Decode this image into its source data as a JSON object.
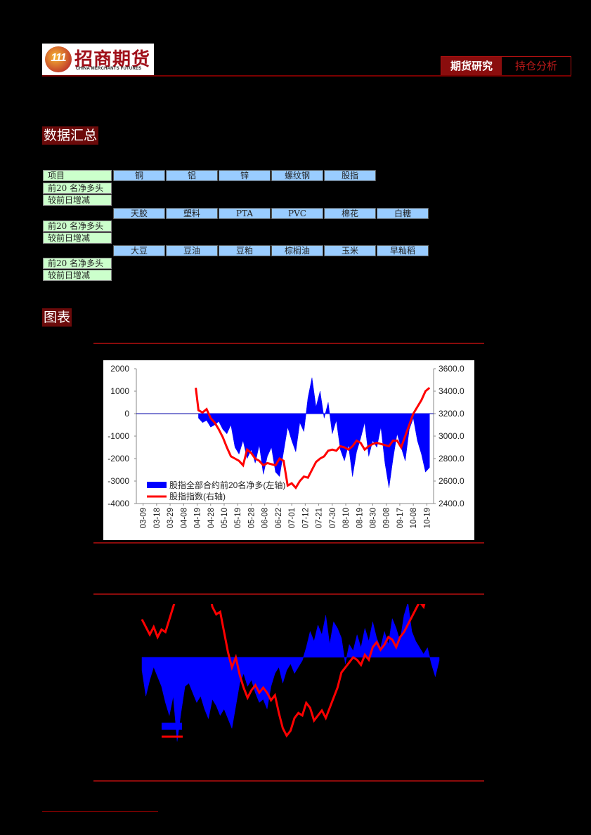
{
  "header": {
    "logo_cn": "招商期货",
    "logo_en": "CHINA MERCHANTS FUTURES",
    "tag_primary": "期货研究",
    "tag_secondary": "持仓分析"
  },
  "sections": {
    "summary_title": "数据汇总",
    "charts_title": "图表"
  },
  "table": {
    "row_label_item": "项目",
    "row_label_net": "前20 名净多头",
    "row_label_change": "较前日增减",
    "groups": [
      {
        "headers": [
          "铜",
          "铝",
          "锌",
          "螺纹钢",
          "股指"
        ]
      },
      {
        "headers": [
          "天胶",
          "塑料",
          "PTA",
          "PVC",
          "棉花",
          "白糖"
        ]
      },
      {
        "headers": [
          "大豆",
          "豆油",
          "豆粕",
          "棕榈油",
          "玉米",
          "早籼稻"
        ]
      }
    ]
  },
  "colors": {
    "bar_fill": "#0000ff",
    "line": "#ff0000",
    "section_bg": "#6b0a0a",
    "label_cell": "#ccffcc",
    "header_cell": "#99ccff"
  },
  "chart_data": [
    {
      "type": "area",
      "left_axis": {
        "ticks": [
          "2000",
          "1000",
          "0",
          "-1000",
          "-2000",
          "-3000",
          "-4000"
        ],
        "range": [
          -4000,
          2000
        ]
      },
      "right_axis": {
        "ticks": [
          "3600.0",
          "3400.0",
          "3200.0",
          "3000.0",
          "2800.0",
          "2600.0",
          "2400.0"
        ],
        "range": [
          2400,
          3600
        ]
      },
      "x_ticks": [
        "03-09",
        "03-18",
        "03-29",
        "04-08",
        "04-19",
        "04-28",
        "05-10",
        "05-19",
        "05-28",
        "06-08",
        "06-22",
        "07-01",
        "07-12",
        "07-21",
        "07-30",
        "08-10",
        "08-19",
        "08-30",
        "09-08",
        "09-17",
        "10-08",
        "10-19"
      ],
      "legend": [
        "股指全部合约前20名净多(左轴)",
        "股指指数(右轴)"
      ],
      "legend_position": "bottom-left",
      "series": [
        {
          "name": "股指全部合约前20名净多(左轴)",
          "axis": "left",
          "kind": "area",
          "x_index": [
            4.1,
            4.4,
            4.7,
            5,
            5.3,
            5.6,
            5.9,
            6.2,
            6.5,
            6.8,
            7.1,
            7.4,
            7.7,
            8,
            8.3,
            8.6,
            8.9,
            9.2,
            9.5,
            9.8,
            10.1,
            10.4,
            10.7,
            11,
            11.3,
            11.6,
            11.9,
            12.2,
            12.5,
            12.8,
            13.1,
            13.4,
            13.7,
            14,
            14.3,
            14.6,
            14.9,
            15.2,
            15.5,
            15.8,
            16.1,
            16.4,
            16.7,
            17,
            17.3,
            17.6,
            17.9,
            18.2,
            18.5,
            18.8,
            19.1,
            19.4,
            19.7,
            20,
            20.3,
            20.6,
            20.9,
            21.2
          ],
          "values": [
            -200,
            -400,
            -300,
            -600,
            -500,
            -350,
            -700,
            -900,
            -500,
            -1500,
            -1800,
            -1200,
            -2000,
            -1600,
            -2200,
            -1400,
            -2700,
            -1900,
            -1500,
            -2600,
            -2800,
            -1700,
            -600,
            -1200,
            -1700,
            -400,
            -800,
            700,
            1600,
            300,
            1000,
            -200,
            500,
            -900,
            -300,
            -1600,
            -2100,
            -1400,
            -2800,
            -1700,
            -1100,
            -400,
            -1900,
            -1200,
            -1500,
            -600,
            -2200,
            -3300,
            -2000,
            -900,
            -1500,
            -2100,
            -700,
            -200,
            -1200,
            -1800,
            -2600,
            -2400
          ]
        },
        {
          "name": "股指指数(右轴)",
          "axis": "right",
          "kind": "line",
          "x_index": [
            3.9,
            4.1,
            4.4,
            4.7,
            5,
            5.3,
            5.6,
            5.9,
            6.2,
            6.5,
            6.8,
            7.1,
            7.4,
            7.7,
            8,
            8.3,
            8.6,
            8.9,
            9.2,
            9.5,
            9.8,
            10.1,
            10.4,
            10.7,
            11,
            11.3,
            11.6,
            11.9,
            12.2,
            12.5,
            12.8,
            13.1,
            13.4,
            13.7,
            14,
            14.3,
            14.6,
            14.9,
            15.2,
            15.5,
            15.8,
            16.1,
            16.4,
            16.7,
            17,
            17.3,
            17.6,
            17.9,
            18.2,
            18.5,
            18.8,
            19.1,
            19.4,
            19.7,
            20,
            20.3,
            20.6,
            20.9,
            21.2
          ],
          "values": [
            3430,
            3230,
            3210,
            3240,
            3160,
            3120,
            3060,
            2990,
            2900,
            2820,
            2800,
            2780,
            2740,
            2880,
            2850,
            2800,
            2780,
            2740,
            2760,
            2750,
            2740,
            2800,
            2780,
            2560,
            2580,
            2540,
            2600,
            2640,
            2630,
            2700,
            2770,
            2800,
            2820,
            2870,
            2880,
            2870,
            2910,
            2900,
            2880,
            2910,
            2960,
            2940,
            2880,
            2910,
            2930,
            2940,
            2930,
            2920,
            2910,
            2960,
            2960,
            2900,
            3000,
            3100,
            3200,
            3260,
            3320,
            3400,
            3430
          ]
        }
      ]
    },
    {
      "type": "area",
      "legend": [
        "",
        ""
      ],
      "series": [
        {
          "name": "",
          "axis": "left",
          "kind": "area",
          "values": [
            -400,
            -1200,
            -700,
            -300,
            -600,
            -900,
            -1400,
            -1800,
            -1200,
            -2600,
            -1700,
            -900,
            -800,
            -1100,
            -1400,
            -1200,
            -1600,
            -1900,
            -1300,
            -1500,
            -1800,
            -1600,
            -1900,
            -2200,
            -1500,
            -800,
            -500,
            -900,
            -700,
            -1100,
            -1400,
            -1300,
            -1600,
            -900,
            -500,
            -300,
            -800,
            -400,
            -200,
            -500,
            -300,
            -100,
            300,
            800,
            500,
            1000,
            700,
            1300,
            400,
            1100,
            900,
            600,
            -200,
            400,
            200,
            700,
            300,
            900,
            500,
            1100,
            600,
            300,
            800,
            400,
            1200,
            900,
            500,
            1300,
            1700,
            800,
            500,
            300,
            100,
            300,
            -200,
            -600,
            -100
          ]
        },
        {
          "name": "",
          "axis": "right",
          "kind": "line",
          "values": [
            3150,
            3120,
            3090,
            3120,
            3080,
            3110,
            3100,
            3150,
            3200,
            3250,
            3300,
            3340,
            3310,
            3350,
            3320,
            3260,
            3250,
            3280,
            3200,
            3170,
            3180,
            3100,
            3020,
            2960,
            3000,
            2930,
            2880,
            2840,
            2870,
            2890,
            2860,
            2880,
            2860,
            2830,
            2850,
            2780,
            2720,
            2690,
            2710,
            2760,
            2780,
            2770,
            2820,
            2800,
            2750,
            2770,
            2790,
            2760,
            2800,
            2840,
            2880,
            2940,
            2960,
            2980,
            3000,
            2990,
            2970,
            3010,
            2990,
            3040,
            3060,
            3030,
            3050,
            3080,
            3070,
            3040,
            3080,
            3100,
            3130,
            3160,
            3190,
            3220,
            3200,
            3260,
            3290,
            3270,
            3250
          ]
        }
      ]
    }
  ]
}
